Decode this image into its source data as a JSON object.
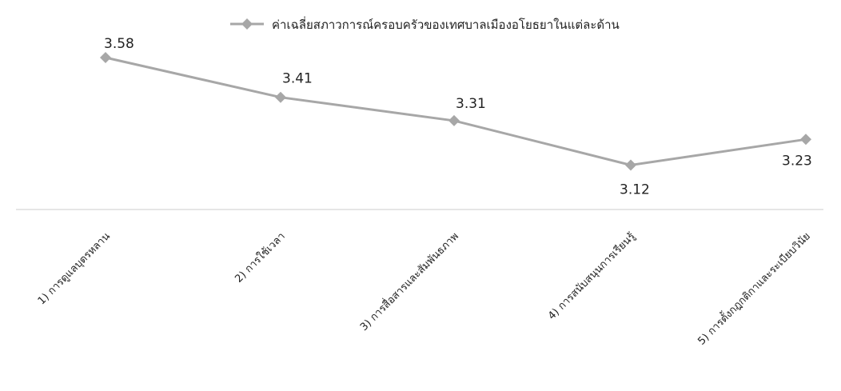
{
  "chart_data": {
    "type": "line",
    "categories": [
      "1)  การดูแลบุตรหลาน",
      "2)  การใช้เวลา",
      "3)  การสื่อสารและสัมพันธภาพ",
      "4)  การสนับสนุนการเรียนรู้",
      "5)  การตั้งกฎกติกาและระเบียบวินัย"
    ],
    "series": [
      {
        "name": "ค่าเฉลี่ยสภาวการณ์ครอบครัวของเทศบาลเมืองอโยธยาในแต่ละด้าน",
        "values": [
          3.58,
          3.41,
          3.31,
          3.12,
          3.23
        ]
      }
    ],
    "data_labels": [
      "3.58",
      "3.41",
      "3.31",
      "3.12",
      "3.23"
    ],
    "ylim": [
      2.93,
      3.58
    ],
    "grid": false,
    "legend_position": "top-center",
    "line_color": "#a7a7a7",
    "marker_color": "#a7a7a7"
  }
}
